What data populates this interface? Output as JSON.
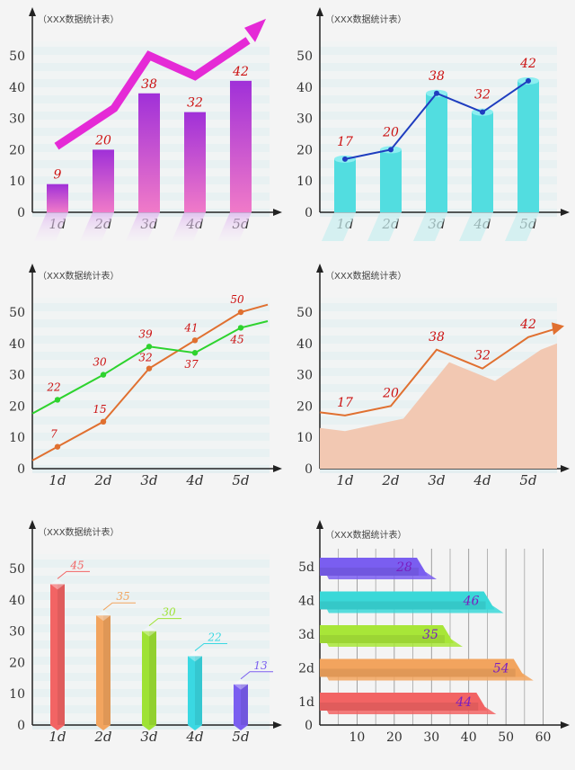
{
  "chart_data": [
    {
      "type": "bar",
      "title": "（XXX数据统计表）",
      "categories": [
        "1d",
        "2d",
        "3d",
        "4d",
        "5d"
      ],
      "values": [
        9,
        20,
        38,
        32,
        42
      ],
      "ylim": [
        0,
        50
      ],
      "yticks": [
        0,
        10,
        20,
        30,
        40,
        50
      ],
      "grid": "horizontal bands",
      "legend": "none",
      "colors": {
        "bar_top": "#a030d8",
        "bar_bottom": "#f07ac8",
        "arrow": "#e52ad6",
        "label": "#cc1111"
      },
      "trend_arrow": true
    },
    {
      "type": "bar",
      "title": "（XXX数据统计表）",
      "categories": [
        "1d",
        "2d",
        "3d",
        "4d",
        "5d"
      ],
      "values": [
        17,
        20,
        38,
        32,
        42
      ],
      "ylim": [
        0,
        50
      ],
      "yticks": [
        0,
        10,
        20,
        30,
        40,
        50
      ],
      "grid": "horizontal bands",
      "legend": "none",
      "colors": {
        "bar": "#52dde0",
        "line": "#1f3dbf",
        "label": "#cc1111"
      },
      "overlay_line": true
    },
    {
      "type": "line",
      "title": "（XXX数据统计表）",
      "categories": [
        "1d",
        "2d",
        "3d",
        "4d",
        "5d"
      ],
      "series": [
        {
          "values": [
            7,
            15,
            32,
            41,
            50
          ],
          "color": "#e07030"
        },
        {
          "values": [
            22,
            30,
            39,
            37,
            45
          ],
          "color": "#2ed32e"
        }
      ],
      "ylim": [
        0,
        50
      ],
      "yticks": [
        0,
        10,
        20,
        30,
        40,
        50
      ],
      "grid": "horizontal bands",
      "legend": "none",
      "label_color": "#cc1111"
    },
    {
      "type": "area",
      "title": "（XXX数据统计表）",
      "categories": [
        "1d",
        "2d",
        "3d",
        "4d",
        "5d"
      ],
      "values": [
        17,
        20,
        38,
        32,
        42
      ],
      "ylim": [
        0,
        50
      ],
      "yticks": [
        0,
        10,
        20,
        30,
        40,
        50
      ],
      "grid": "horizontal bands",
      "legend": "none",
      "colors": {
        "area": "#f2c8b2",
        "line": "#e07030",
        "label": "#cc1111"
      }
    },
    {
      "type": "bar",
      "title": "（XXX数据统计表）",
      "categories": [
        "1d",
        "2d",
        "3d",
        "4d",
        "5d"
      ],
      "values": [
        45,
        35,
        30,
        22,
        13
      ],
      "colors": [
        "#f26464",
        "#f2a45e",
        "#9ee234",
        "#3ad8e2",
        "#7a5ef0"
      ],
      "ylim": [
        0,
        50
      ],
      "yticks": [
        0,
        10,
        20,
        30,
        40,
        50
      ],
      "grid": "horizontal bands",
      "legend": "none"
    },
    {
      "type": "bar",
      "orientation": "horizontal",
      "title": "（XXX数据统计表）",
      "categories": [
        "1d",
        "2d",
        "3d",
        "4d",
        "5d"
      ],
      "values": [
        44,
        54,
        35,
        46,
        28
      ],
      "colors": [
        "#f26464",
        "#f2a45e",
        "#a8e638",
        "#3ad8d8",
        "#7a5ef0"
      ],
      "xlim": [
        0,
        65
      ],
      "xticks": [
        10,
        20,
        30,
        40,
        50,
        60
      ],
      "grid": "vertical lines",
      "legend": "none",
      "label_color": "#7a1fc0"
    }
  ]
}
